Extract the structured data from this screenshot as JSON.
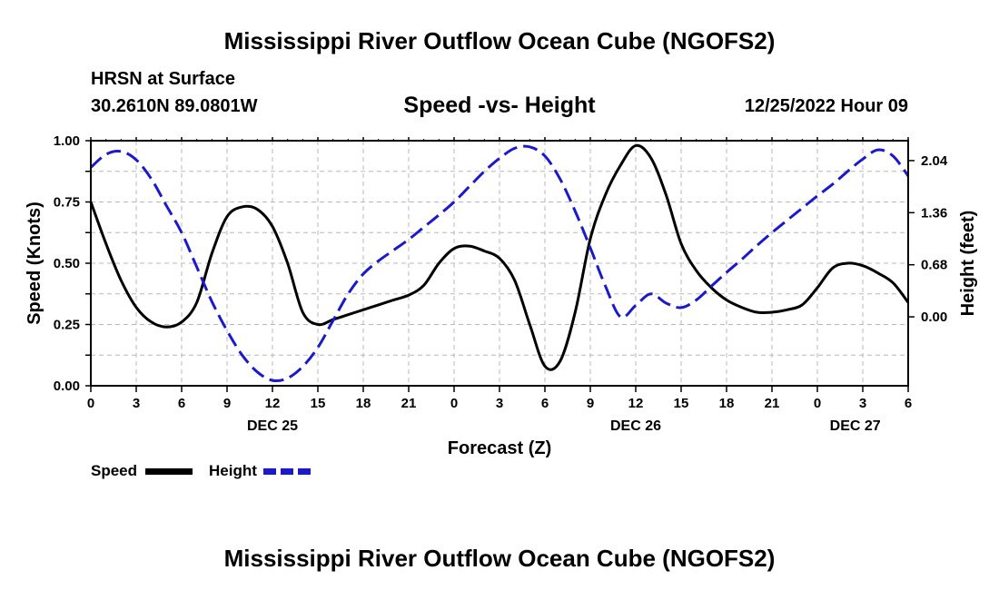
{
  "title": "Mississippi River Outflow Ocean Cube (NGOFS2)",
  "bottom_title": "Mississippi River Outflow Ocean Cube (NGOFS2)",
  "station": {
    "name": "HRSN at Surface",
    "coords": "30.2610N  89.0801W",
    "datetime": "12/25/2022 Hour 09"
  },
  "legend": {
    "speed_label": "Speed",
    "height_label": "Height",
    "speed_color": "#000000",
    "height_color": "#1a1acc"
  },
  "chart_data": {
    "type": "line",
    "title": "Speed -vs- Height",
    "xlabel": "Forecast (Z)",
    "ylabel": "Speed (Knots)",
    "y2label": "Height (feet)",
    "xlim": [
      0,
      54
    ],
    "ylim": [
      0,
      1.0
    ],
    "y2lim": [
      -0.9,
      2.3
    ],
    "grid": true,
    "x_tick_values": [
      0,
      3,
      6,
      9,
      12,
      15,
      18,
      21,
      24,
      27,
      30,
      33,
      36,
      39,
      42,
      45,
      48,
      51,
      54
    ],
    "x_tick_labels": [
      "0",
      "3",
      "6",
      "9",
      "12",
      "15",
      "18",
      "21",
      "0",
      "3",
      "6",
      "9",
      "12",
      "15",
      "18",
      "21",
      "0",
      "3",
      "6"
    ],
    "day_labels": [
      {
        "label": "DEC 25",
        "x": 12
      },
      {
        "label": "DEC 26",
        "x": 36
      },
      {
        "label": "DEC 27",
        "x": 50.5
      }
    ],
    "y_ticks": [
      0.0,
      0.25,
      0.5,
      0.75,
      1.0
    ],
    "y_tick_labels": [
      "0.00",
      "0.25",
      "0.50",
      "0.75",
      "1.00"
    ],
    "y2_ticks": [
      0.0,
      0.68,
      1.36,
      2.04
    ],
    "y2_tick_labels": [
      "0.00",
      "0.68",
      "1.36",
      "2.04"
    ],
    "series": [
      {
        "name": "Speed",
        "axis": "left",
        "color": "#000000",
        "dash": "solid",
        "x": [
          0,
          1,
          2,
          3,
          4,
          5,
          6,
          7,
          8,
          9,
          10,
          11,
          12,
          13,
          14,
          15,
          16,
          17,
          18,
          19,
          20,
          21,
          22,
          23,
          24,
          25,
          26,
          27,
          28,
          29,
          30,
          31,
          32,
          33,
          34,
          35,
          36,
          37,
          38,
          39,
          40,
          41,
          42,
          43,
          44,
          45,
          46,
          47,
          48,
          49,
          50,
          51,
          52,
          53,
          54
        ],
        "values": [
          0.75,
          0.58,
          0.43,
          0.32,
          0.26,
          0.24,
          0.26,
          0.34,
          0.54,
          0.69,
          0.73,
          0.72,
          0.65,
          0.5,
          0.3,
          0.25,
          0.27,
          0.29,
          0.31,
          0.33,
          0.35,
          0.37,
          0.41,
          0.5,
          0.56,
          0.57,
          0.55,
          0.52,
          0.43,
          0.25,
          0.08,
          0.1,
          0.3,
          0.6,
          0.78,
          0.9,
          0.98,
          0.93,
          0.78,
          0.58,
          0.47,
          0.4,
          0.35,
          0.32,
          0.3,
          0.3,
          0.31,
          0.33,
          0.4,
          0.48,
          0.5,
          0.49,
          0.46,
          0.42,
          0.34
        ]
      },
      {
        "name": "Height",
        "axis": "right",
        "color": "#1a1acc",
        "dash": "dashed",
        "x": [
          0,
          1,
          2,
          3,
          4,
          5,
          6,
          7,
          8,
          9,
          10,
          11,
          12,
          13,
          14,
          15,
          16,
          17,
          18,
          19,
          20,
          21,
          22,
          23,
          24,
          25,
          26,
          27,
          28,
          29,
          30,
          31,
          32,
          33,
          34,
          35,
          36,
          37,
          38,
          39,
          40,
          41,
          42,
          43,
          44,
          45,
          46,
          47,
          48,
          49,
          50,
          51,
          52,
          53,
          54
        ],
        "values": [
          1.95,
          2.12,
          2.16,
          2.05,
          1.8,
          1.45,
          1.1,
          0.65,
          0.2,
          -0.18,
          -0.5,
          -0.72,
          -0.83,
          -0.8,
          -0.65,
          -0.4,
          -0.05,
          0.3,
          0.56,
          0.73,
          0.87,
          1.01,
          1.17,
          1.33,
          1.5,
          1.7,
          1.9,
          2.07,
          2.2,
          2.22,
          2.1,
          1.8,
          1.38,
          0.9,
          0.4,
          0.0,
          0.15,
          0.3,
          0.18,
          0.12,
          0.22,
          0.4,
          0.58,
          0.75,
          0.93,
          1.1,
          1.26,
          1.42,
          1.58,
          1.73,
          1.9,
          2.06,
          2.18,
          2.1,
          1.84
        ]
      }
    ]
  }
}
